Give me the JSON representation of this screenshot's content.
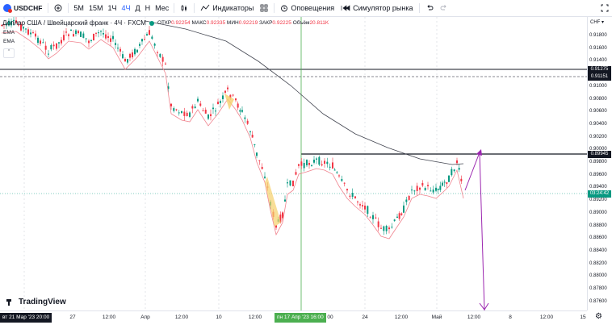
{
  "toolbar": {
    "symbol": "USDCHF",
    "timeframes": [
      {
        "label": "5М",
        "active": false
      },
      {
        "label": "15М",
        "active": false
      },
      {
        "label": "1Ч",
        "active": false
      },
      {
        "label": "4Ч",
        "active": true
      },
      {
        "label": "Д",
        "active": false
      },
      {
        "label": "Н",
        "active": false
      },
      {
        "label": "Мес",
        "active": false
      }
    ],
    "indicators_label": "Индикаторы",
    "alerts_label": "Оповещения",
    "replay_label": "Симулятор рынка"
  },
  "legend": {
    "title": "Доллар США / Швейцарский франк · 4Ч · FXCM",
    "o_label": "ОТКР",
    "o_value": "0.92254",
    "h_label": "МАКС",
    "h_value": "0.92335",
    "l_label": "МИН",
    "l_value": "0.92219",
    "c_label": "ЗАКР",
    "c_value": "0.92225",
    "v_label": "Объём",
    "v_value": "20.811K",
    "ema1": "EMA",
    "ema2": "EMA",
    "collapse_glyph": "ˆ"
  },
  "price_axis": {
    "currency": "CHF ▾",
    "ticks": [
      "0.91800",
      "0.91600",
      "0.91400",
      "0.91200",
      "0.91000",
      "0.90800",
      "0.90600",
      "0.90400",
      "0.90200",
      "0.90000",
      "0.89800",
      "0.89600",
      "0.89400",
      "0.89200",
      "0.89000",
      "0.88800",
      "0.88600",
      "0.88400",
      "0.88200",
      "0.88000",
      "0.87800",
      "0.87600"
    ],
    "labels": [
      {
        "text": "0.91275",
        "bg": "#131722"
      },
      {
        "text": "0.91151",
        "bg": "#131722"
      },
      {
        "text": "0.89945",
        "bg": "#131722"
      },
      {
        "text": "03:24:42",
        "bg": "#089981"
      }
    ]
  },
  "time_axis": {
    "ticks": [
      "27",
      "12:00",
      "Апр",
      "12:00",
      "10",
      "12:00",
      "24",
      "12:00",
      "Май",
      "12:00",
      "8",
      "12:00",
      "15"
    ],
    "left_badge": "вт 21 Мар '23  20:00",
    "cursor_badge": "пн 17 Апр '23  16:00",
    "cursor_tick": "00"
  },
  "footer": {
    "logo": "TradingView",
    "settings_icon": "⚙"
  },
  "colors": {
    "up": "#089981",
    "down": "#f23645",
    "ema_fast": "#f0848f",
    "ema_slow": "#434651",
    "crosshair": "#4caf50",
    "arrow": "#9c27b0"
  }
}
